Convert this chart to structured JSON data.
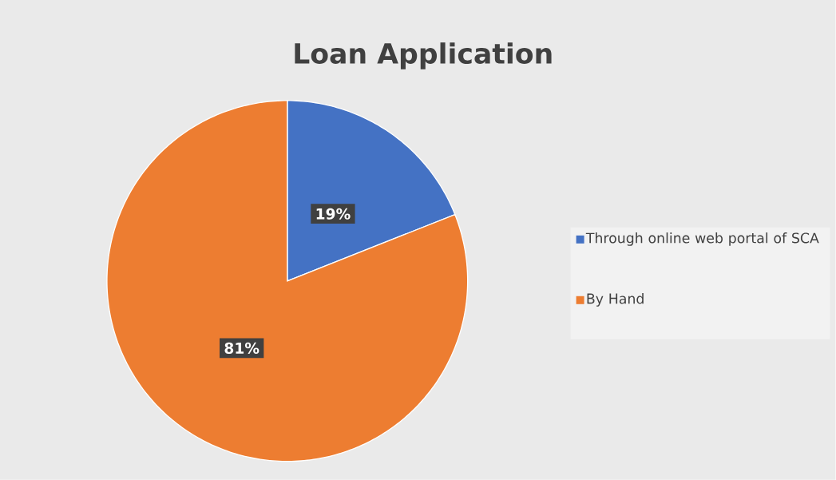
{
  "chart_data": {
    "type": "pie",
    "title": "Loan Application",
    "categories": [
      "Through online web portal of SCA",
      "By Hand"
    ],
    "values": [
      19,
      81
    ],
    "colors": [
      "#4472c4",
      "#ed7d31"
    ],
    "value_labels": [
      "19%",
      "81%"
    ],
    "legend": "right"
  }
}
